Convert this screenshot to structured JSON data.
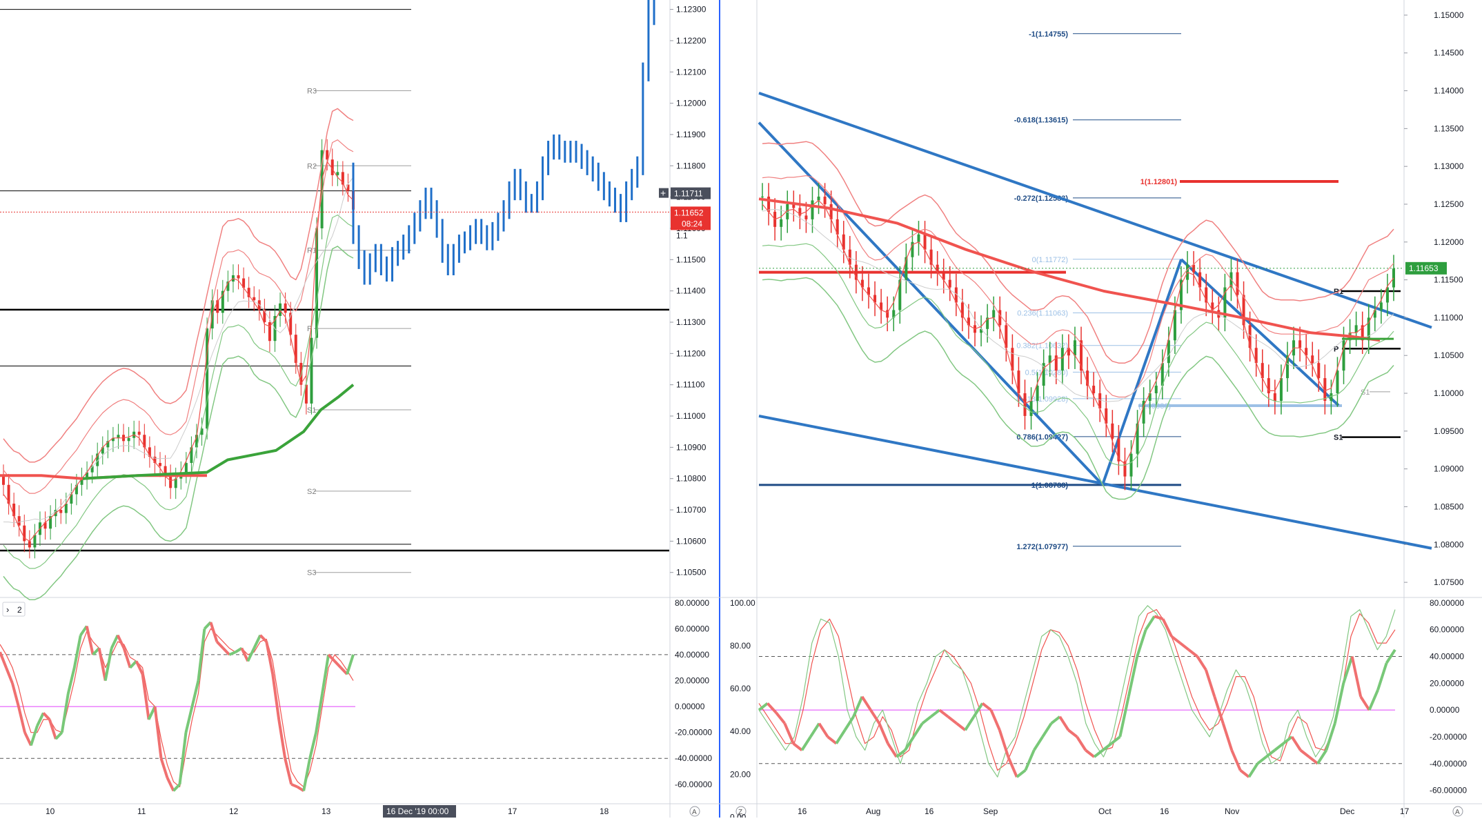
{
  "colors": {
    "background": "#ffffff",
    "divider": "#2962ff",
    "axis_text": "#131722",
    "candle_up": "#2e9e3e",
    "candle_down": "#e8322f",
    "blue_bars": "#1f6fc9",
    "band_red": "#f08080",
    "band_green": "#82c782",
    "ma_red": "#f0534f",
    "ma_green": "#3aa33a",
    "trend_blue": "#2f77c4",
    "fib_blue": "#1e4b85",
    "fib_light": "#9cc0e6",
    "level_red": "#e8322f",
    "pivot_grey": "#9e9e9e",
    "price_label_red": "#e8322f",
    "price_label_green": "#2e9e3e",
    "crosshair_label": "#4a4f5c",
    "date_label": "#4a4f5c",
    "osc_zero": "#e040fb"
  },
  "chart_data": [
    {
      "type": "candlestick",
      "symbol_pane": "left-price",
      "xlabel": "",
      "ylabel": "",
      "x_ticks": [
        "10",
        "11",
        "12",
        "13",
        "17",
        "18"
      ],
      "y_ticks": [
        "1.12300",
        "1.12200",
        "1.12100",
        "1.12000",
        "1.11900",
        "1.11800",
        "1.11700",
        "1.11600",
        "1.11500",
        "1.11400",
        "1.11300",
        "1.11200",
        "1.11100",
        "1.11000",
        "1.10900",
        "1.10800",
        "1.10700",
        "1.10600",
        "1.10500"
      ],
      "ylim": [
        1.1042,
        1.1233
      ],
      "price_labels": {
        "crosshair": "1.11711",
        "last": "1.11652",
        "countdown": "08:24",
        "hidden": "1.1"
      },
      "date_label": "16 Dec '19   00:00",
      "pivots": [
        {
          "name": "R3",
          "value": 1.1204
        },
        {
          "name": "R2",
          "value": 1.118
        },
        {
          "name": "R1",
          "value": 1.1153
        },
        {
          "name": "P",
          "value": 1.1128
        },
        {
          "name": "S1",
          "value": 1.1102
        },
        {
          "name": "S2",
          "value": 1.1076
        },
        {
          "name": "S3",
          "value": 1.105
        }
      ],
      "horizontal_levels": [
        1.123,
        1.1172,
        1.1134,
        1.1116,
        1.1059,
        1.1057
      ],
      "last_price": 1.11652,
      "series": [
        {
          "name": "candles",
          "close": [
            1.1078,
            1.1072,
            1.1068,
            1.1065,
            1.106,
            1.1058,
            1.1062,
            1.1066,
            1.1064,
            1.1068,
            1.107,
            1.1069,
            1.1072,
            1.1075,
            1.1078,
            1.108,
            1.1082,
            1.1084,
            1.1088,
            1.109,
            1.1092,
            1.1093,
            1.1094,
            1.1092,
            1.1093,
            1.1095,
            1.1094,
            1.109,
            1.1087,
            1.1085,
            1.1084,
            1.1081,
            1.1077,
            1.108,
            1.1082,
            1.1085,
            1.109,
            1.1094,
            1.1096,
            1.1128,
            1.1137,
            1.1133,
            1.114,
            1.1143,
            1.1145,
            1.1144,
            1.1141,
            1.1138,
            1.1137,
            1.1134,
            1.113,
            1.1124,
            1.1132,
            1.1136,
            1.1133,
            1.1126,
            1.1117,
            1.111,
            1.1104,
            1.1125,
            1.116,
            1.1185,
            1.1182,
            1.1177,
            1.1178,
            1.1174,
            1.1172,
            1.1166
          ]
        },
        {
          "name": "blue-bars",
          "close": [
            1.1158,
            1.115,
            1.1145,
            1.1149,
            1.1152,
            1.1148,
            1.1146,
            1.1151,
            1.1153,
            1.1155,
            1.1158,
            1.1162,
            1.1166,
            1.117,
            1.1166,
            1.116,
            1.1152,
            1.1148,
            1.1152,
            1.1155,
            1.1156,
            1.1158,
            1.116,
            1.1158,
            1.1156,
            1.1159,
            1.1162,
            1.1166,
            1.1172,
            1.1176,
            1.1172,
            1.1168,
            1.1168,
            1.1172,
            1.118,
            1.1185,
            1.1187,
            1.1185,
            1.1184,
            1.1185,
            1.1184,
            1.1182,
            1.118,
            1.1178,
            1.1175,
            1.1172,
            1.117,
            1.1168,
            1.1165,
            1.1172,
            1.1176,
            1.118,
            1.121,
            1.1245,
            1.1228
          ]
        }
      ]
    },
    {
      "type": "line",
      "symbol_pane": "left-oscillator",
      "legend": "2",
      "y_ticks": [
        "80.00000",
        "60.00000",
        "40.00000",
        "20.00000",
        "0.00000",
        "-20.00000",
        "-40.00000",
        "-60.00000"
      ],
      "ylim": [
        -75,
        82
      ],
      "levels": [
        40,
        0,
        -40
      ],
      "series": [
        {
          "name": "k",
          "values": [
            42,
            30,
            18,
            0,
            -20,
            -30,
            -15,
            -5,
            -10,
            -25,
            -20,
            10,
            30,
            55,
            62,
            40,
            45,
            20,
            45,
            55,
            45,
            30,
            35,
            25,
            -10,
            0,
            -40,
            -55,
            -65,
            -60,
            -20,
            0,
            20,
            60,
            65,
            50,
            45,
            40,
            42,
            45,
            35,
            45,
            55,
            50,
            25,
            -10,
            -40,
            -60,
            -62,
            -65,
            -40,
            -20,
            10,
            40,
            35,
            30,
            25,
            40
          ]
        },
        {
          "name": "d",
          "values": [
            48,
            40,
            30,
            15,
            -5,
            -20,
            -20,
            -10,
            -10,
            -18,
            -20,
            0,
            20,
            45,
            58,
            50,
            45,
            30,
            40,
            50,
            48,
            38,
            35,
            30,
            5,
            0,
            -25,
            -45,
            -58,
            -62,
            -35,
            -10,
            10,
            50,
            60,
            55,
            50,
            45,
            42,
            45,
            40,
            42,
            50,
            52,
            35,
            5,
            -25,
            -50,
            -58,
            -62,
            -50,
            -30,
            0,
            30,
            40,
            35,
            28,
            20
          ]
        }
      ]
    },
    {
      "type": "candlestick",
      "symbol_pane": "right-price",
      "xlabel": "",
      "ylabel": "",
      "x_ticks": [
        "16",
        "Aug",
        "16",
        "Sep",
        "Oct",
        "16",
        "Nov",
        "Dec",
        "17"
      ],
      "y_ticks": [
        "1.15000",
        "1.14500",
        "1.14000",
        "1.13500",
        "1.13000",
        "1.12500",
        "1.12000",
        "1.11500",
        "1.11000",
        "1.10500",
        "1.10000",
        "1.09500",
        "1.09000",
        "1.08500",
        "1.08000",
        "1.07500"
      ],
      "ylim": [
        1.073,
        1.152
      ],
      "price_labels": {
        "last": "1.11653"
      },
      "fibonacci": [
        {
          "label": "-1(1.14755)",
          "value": 1.14755
        },
        {
          "label": "-0.618(1.13615)",
          "value": 1.13615
        },
        {
          "label": "-0.272(1.12583)",
          "value": 1.12583
        },
        {
          "label": "0(1.11772)",
          "value": 1.11772
        },
        {
          "label": "0.236(1.11063)",
          "value": 1.11063
        },
        {
          "label": "0.382(1.10632)",
          "value": 1.10632
        },
        {
          "label": "0.5(1.10280)",
          "value": 1.1028
        },
        {
          "label": "0.618(1.09928)",
          "value": 1.09928
        },
        {
          "label": "0.786(1.09427)",
          "value": 1.09427
        },
        {
          "label": "1(1.08788)",
          "value": 1.08788
        },
        {
          "label": "1.272(1.07977)",
          "value": 1.07977
        }
      ],
      "red_target": {
        "label": "1(1.12801)",
        "value": 1.12801
      },
      "light_level": {
        "label": "(1.09836)",
        "value": 1.09836
      },
      "pivots": [
        {
          "name": "R1",
          "value": 1.1135
        },
        {
          "name": "P",
          "value": 1.1059
        },
        {
          "name": "S1",
          "value": 1.0942
        }
      ],
      "series": [
        {
          "name": "daily",
          "close": [
            1.126,
            1.124,
            1.122,
            1.123,
            1.125,
            1.1245,
            1.1235,
            1.123,
            1.1255,
            1.126,
            1.125,
            1.123,
            1.121,
            1.119,
            1.117,
            1.115,
            1.114,
            1.113,
            1.112,
            1.111,
            1.11,
            1.111,
            1.115,
            1.118,
            1.12,
            1.121,
            1.119,
            1.117,
            1.116,
            1.115,
            1.114,
            1.112,
            1.11,
            1.109,
            1.108,
            1.1085,
            1.11,
            1.111,
            1.109,
            1.106,
            1.103,
            1.1,
            1.097,
            1.099,
            1.101,
            1.104,
            1.105,
            1.103,
            1.106,
            1.105,
            1.107,
            1.103,
            1.101,
            1.1,
            1.098,
            1.096,
            1.094,
            1.091,
            1.089,
            1.092,
            1.096,
            1.099,
            1.1,
            1.101,
            1.104,
            1.107,
            1.111,
            1.115,
            1.117,
            1.116,
            1.114,
            1.112,
            1.111,
            1.11,
            1.114,
            1.116,
            1.113,
            1.109,
            1.106,
            1.104,
            1.102,
            1.1,
            1.099,
            1.102,
            1.105,
            1.107,
            1.106,
            1.105,
            1.104,
            1.102,
            1.099,
            1.1,
            1.103,
            1.107,
            1.108,
            1.109,
            1.107,
            1.11,
            1.111,
            1.112,
            1.114,
            1.1165
          ]
        }
      ]
    },
    {
      "type": "line",
      "symbol_pane": "right-oscillator",
      "left_ticks": [
        "100.00",
        "80.00",
        "60.00",
        "40.00",
        "20.00",
        "0.00"
      ],
      "y_ticks": [
        "80.00000",
        "60.00000",
        "40.00000",
        "20.00000",
        "0.00000",
        "-20.00000",
        "-40.00000",
        "-60.00000"
      ],
      "ylim": [
        -70,
        82
      ],
      "levels": [
        40,
        0,
        -40
      ],
      "series": [
        {
          "name": "slow",
          "values": [
            0,
            5,
            -2,
            -10,
            -25,
            -30,
            -20,
            -10,
            -20,
            -25,
            -15,
            -5,
            10,
            0,
            -10,
            -25,
            -35,
            -30,
            -20,
            -10,
            -5,
            0,
            -5,
            -10,
            -15,
            -5,
            5,
            0,
            -15,
            -35,
            -50,
            -45,
            -30,
            -20,
            -10,
            -5,
            -15,
            -20,
            -30,
            -35,
            -30,
            -25,
            -20,
            10,
            40,
            60,
            70,
            68,
            55,
            50,
            45,
            40,
            30,
            10,
            -10,
            -30,
            -45,
            -50,
            -40,
            -35,
            -30,
            -25,
            -20,
            -30,
            -35,
            -40,
            -30,
            -10,
            20,
            40,
            10,
            0,
            15,
            35,
            45
          ]
        },
        {
          "name": "fast",
          "values": [
            0,
            -10,
            -20,
            -30,
            -20,
            10,
            50,
            68,
            65,
            40,
            0,
            -20,
            -30,
            -10,
            0,
            -20,
            -40,
            -20,
            5,
            20,
            40,
            45,
            35,
            30,
            10,
            -15,
            -40,
            -50,
            -30,
            -20,
            5,
            30,
            55,
            60,
            55,
            40,
            20,
            -10,
            -25,
            -35,
            -20,
            10,
            40,
            70,
            78,
            72,
            60,
            40,
            20,
            0,
            -10,
            -20,
            -5,
            15,
            30,
            20,
            0,
            -25,
            -40,
            -35,
            -10,
            0,
            -20,
            -35,
            -25,
            -5,
            30,
            70,
            75,
            60,
            45,
            55,
            75
          ]
        },
        {
          "name": "signal",
          "values": [
            5,
            -5,
            -15,
            -25,
            -25,
            0,
            35,
            60,
            68,
            55,
            25,
            -5,
            -25,
            -20,
            -5,
            -15,
            -35,
            -30,
            -5,
            15,
            30,
            45,
            40,
            30,
            20,
            0,
            -25,
            -45,
            -40,
            -25,
            -5,
            20,
            45,
            60,
            58,
            48,
            30,
            5,
            -15,
            -30,
            -28,
            -5,
            25,
            55,
            72,
            75,
            65,
            50,
            30,
            10,
            -5,
            -15,
            -10,
            5,
            25,
            25,
            10,
            -15,
            -35,
            -38,
            -20,
            -5,
            -10,
            -28,
            -30,
            -15,
            15,
            55,
            72,
            65,
            50,
            50,
            60
          ]
        }
      ]
    }
  ]
}
